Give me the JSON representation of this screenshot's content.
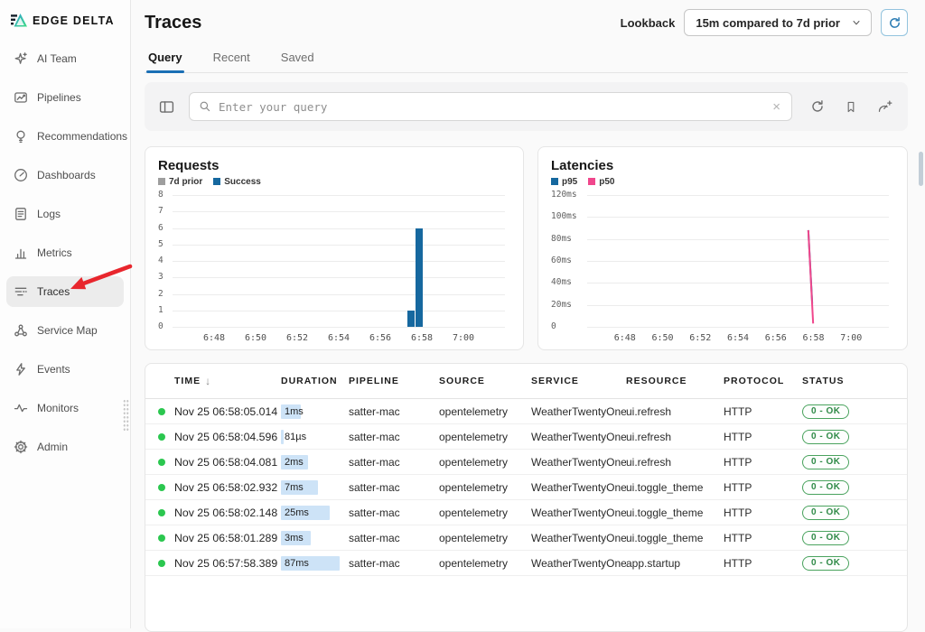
{
  "brand": {
    "name": "EDGE DELTA"
  },
  "sidebar": {
    "items": [
      {
        "label": "AI Team",
        "icon": "ai-sparkle",
        "active": false
      },
      {
        "label": "Pipelines",
        "icon": "pipelines",
        "active": false
      },
      {
        "label": "Recommendations",
        "icon": "lightbulb",
        "active": false
      },
      {
        "label": "Dashboards",
        "icon": "gauge",
        "active": false
      },
      {
        "label": "Logs",
        "icon": "logs",
        "active": false
      },
      {
        "label": "Metrics",
        "icon": "bar-chart",
        "active": false
      },
      {
        "label": "Traces",
        "icon": "traces",
        "active": true
      },
      {
        "label": "Service Map",
        "icon": "service-map",
        "active": false
      },
      {
        "label": "Events",
        "icon": "lightning",
        "active": false
      },
      {
        "label": "Monitors",
        "icon": "pulse",
        "active": false
      },
      {
        "label": "Admin",
        "icon": "gear",
        "active": false
      }
    ]
  },
  "header": {
    "title": "Traces",
    "lookback_label": "Lookback",
    "lookback_value": "15m compared to 7d prior"
  },
  "tabs": [
    {
      "label": "Query",
      "active": true
    },
    {
      "label": "Recent",
      "active": false
    },
    {
      "label": "Saved",
      "active": false
    }
  ],
  "query": {
    "placeholder": "Enter your query"
  },
  "chart_data": [
    {
      "type": "bar",
      "title": "Requests",
      "legend": [
        {
          "label": "7d prior",
          "color": "#9e9e9e"
        },
        {
          "label": "Success",
          "color": "#16689f"
        }
      ],
      "ylim": [
        0,
        8
      ],
      "y_ticks": [
        0,
        1,
        2,
        3,
        4,
        5,
        6,
        7,
        8
      ],
      "x_tick_labels": [
        "6:48",
        "6:50",
        "6:52",
        "6:54",
        "6:56",
        "6:58",
        "7:00"
      ],
      "series": [
        {
          "name": "7d prior",
          "color": "#9e9e9e",
          "bars": []
        },
        {
          "name": "Success",
          "color": "#16689f",
          "bars": [
            {
              "time": "6:57.5",
              "value": 1,
              "frac": 0.718
            },
            {
              "time": "6:58",
              "value": 6,
              "frac": 0.741
            }
          ]
        }
      ]
    },
    {
      "type": "line",
      "title": "Latencies",
      "legend": [
        {
          "label": "p95",
          "color": "#16689f"
        },
        {
          "label": "p50",
          "color": "#f0478c"
        }
      ],
      "ylim": [
        0,
        120
      ],
      "y_ticks": [
        "0",
        "20ms",
        "40ms",
        "60ms",
        "80ms",
        "100ms",
        "120ms"
      ],
      "x_tick_labels": [
        "6:48",
        "6:50",
        "6:52",
        "6:54",
        "6:56",
        "6:58",
        "7:00"
      ],
      "series": [
        {
          "name": "p95",
          "color": "#16689f",
          "points": [
            {
              "time": "6:57.8",
              "value": 88,
              "frac": 0.733
            },
            {
              "time": "6:58.05",
              "value": 21,
              "frac": 0.746
            }
          ]
        },
        {
          "name": "p50",
          "color": "#f0478c",
          "points": [
            {
              "time": "6:57.8",
              "value": 88,
              "frac": 0.733
            },
            {
              "time": "6:58.1",
              "value": 3,
              "frac": 0.749
            }
          ]
        }
      ]
    }
  ],
  "table": {
    "columns": [
      "TIME",
      "DURATION",
      "PIPELINE",
      "SOURCE",
      "SERVICE",
      "RESOURCE",
      "PROTOCOL",
      "STATUS"
    ],
    "sort_column": "TIME",
    "sort_direction": "desc",
    "rows": [
      {
        "time": "Nov 25 06:58:05.014",
        "duration": "1ms",
        "duration_pct": 33,
        "pipeline": "satter-mac",
        "source": "opentelemetry",
        "service": "WeatherTwentyOne",
        "resource": "ui.refresh",
        "protocol": "HTTP",
        "status": "0 - OK"
      },
      {
        "time": "Nov 25 06:58:04.596",
        "duration": "81µs",
        "duration_pct": 4,
        "pipeline": "satter-mac",
        "source": "opentelemetry",
        "service": "WeatherTwentyOne",
        "resource": "ui.refresh",
        "protocol": "HTTP",
        "status": "0 - OK"
      },
      {
        "time": "Nov 25 06:58:04.081",
        "duration": "2ms",
        "duration_pct": 44,
        "pipeline": "satter-mac",
        "source": "opentelemetry",
        "service": "WeatherTwentyOne",
        "resource": "ui.refresh",
        "protocol": "HTTP",
        "status": "0 - OK"
      },
      {
        "time": "Nov 25 06:58:02.932",
        "duration": "7ms",
        "duration_pct": 60,
        "pipeline": "satter-mac",
        "source": "opentelemetry",
        "service": "WeatherTwentyOne",
        "resource": "ui.toggle_theme",
        "protocol": "HTTP",
        "status": "0 - OK"
      },
      {
        "time": "Nov 25 06:58:02.148",
        "duration": "25ms",
        "duration_pct": 79,
        "pipeline": "satter-mac",
        "source": "opentelemetry",
        "service": "WeatherTwentyOne",
        "resource": "ui.toggle_theme",
        "protocol": "HTTP",
        "status": "0 - OK"
      },
      {
        "time": "Nov 25 06:58:01.289",
        "duration": "3ms",
        "duration_pct": 49,
        "pipeline": "satter-mac",
        "source": "opentelemetry",
        "service": "WeatherTwentyOne",
        "resource": "ui.toggle_theme",
        "protocol": "HTTP",
        "status": "0 - OK"
      },
      {
        "time": "Nov 25 06:57:58.389",
        "duration": "87ms",
        "duration_pct": 95,
        "pipeline": "satter-mac",
        "source": "opentelemetry",
        "service": "WeatherTwentyOne",
        "resource": "app.startup",
        "protocol": "HTTP",
        "status": "0 - OK"
      }
    ]
  },
  "colors": {
    "accent_blue": "#1b6fb5",
    "series_blue": "#16689f",
    "series_pink": "#f0478c",
    "series_gray": "#9e9e9e",
    "success_green": "#2bc74f",
    "status_green": "#4aa35e",
    "arrow_red": "#e8262d",
    "duration_bar": "#cde3f7"
  }
}
